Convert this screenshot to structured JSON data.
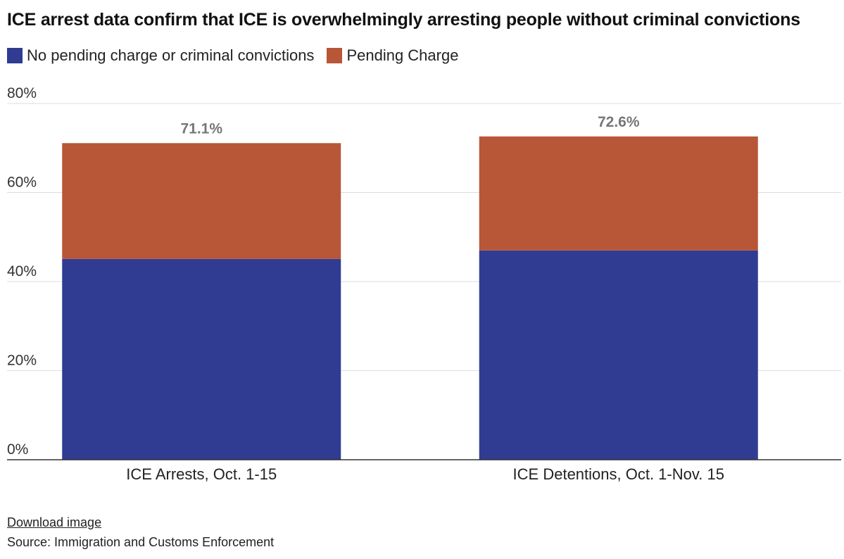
{
  "title": "ICE arrest data confirm that ICE is overwhelmingly arresting people without criminal convictions",
  "footer": {
    "download_label": "Download image",
    "source": "Source: Immigration and Customs Enforcement"
  },
  "chart_data": {
    "type": "bar",
    "stacked": true,
    "categories": [
      "ICE Arrests, Oct. 1-15",
      "ICE Detentions, Oct. 1-Nov. 15"
    ],
    "series": [
      {
        "name": "No pending charge or criminal convictions",
        "color": "#2f3c91",
        "values": [
          45.1,
          47.0
        ]
      },
      {
        "name": "Pending Charge",
        "color": "#b85638",
        "values": [
          26.0,
          25.6
        ]
      }
    ],
    "totals": [
      "71.1%",
      "72.6%"
    ],
    "ylim": [
      0,
      80
    ],
    "yticks": [
      0,
      20,
      40,
      60,
      80
    ],
    "ytick_labels": [
      "0%",
      "20%",
      "40%",
      "60%",
      "80%"
    ],
    "legend_position": "top-left",
    "grid": true
  }
}
